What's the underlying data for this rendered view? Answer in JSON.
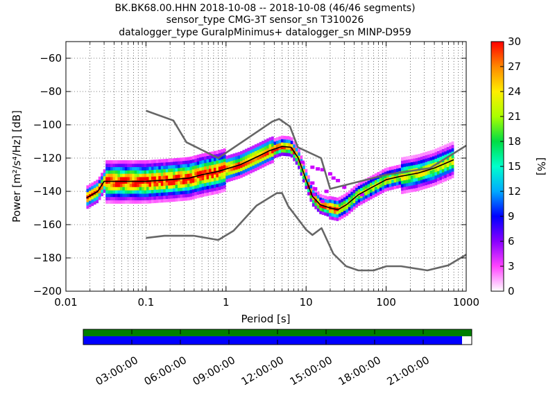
{
  "header": {
    "title_lines": [
      "BK.BK68.00.HHN   2018-10-08 -- 2018-10-08  (46/46 segments)",
      "sensor_type CMG-3T sensor_sn T310026",
      "datalogger_type GuralpMinimus+ datalogger_sn MINP-D959"
    ]
  },
  "chart_data": {
    "type": "heatmap",
    "xlabel": "Period [s]",
    "ylabel": "Power [m²/s⁴/Hz] [dB]",
    "x_scale": "log",
    "xlim": [
      0.01,
      1000
    ],
    "ylim": [
      -200,
      -50
    ],
    "x_ticks": [
      0.01,
      0.1,
      1,
      10,
      100,
      1000
    ],
    "x_tick_labels": [
      "0.01",
      "0.1",
      "1",
      "10",
      "100",
      "1000"
    ],
    "y_ticks": [
      -200,
      -180,
      -160,
      -140,
      -120,
      -100,
      -80,
      -60
    ],
    "y_tick_labels": [
      "−200",
      "−180",
      "−160",
      "−140",
      "−120",
      "−100",
      "−80",
      "−60"
    ],
    "grid": "dotted",
    "colorbar": {
      "label": "[%]",
      "range": [
        0,
        30
      ],
      "ticks": [
        0,
        3,
        6,
        9,
        12,
        15,
        18,
        21,
        24,
        27,
        30
      ],
      "tick_labels": [
        "0",
        "3",
        "6",
        "9",
        "12",
        "15",
        "18",
        "21",
        "24",
        "27",
        "30"
      ],
      "colors": [
        "#ffffff",
        "#ff44ff",
        "#8800ff",
        "#0000ff",
        "#00aaff",
        "#00ffcc",
        "#00dd44",
        "#aaff00",
        "#ffee00",
        "#ff8800",
        "#ff0000"
      ]
    },
    "noise_models": {
      "color": "#666666",
      "NHNM": [
        [
          0.1,
          -91.5
        ],
        [
          0.22,
          -97.4
        ],
        [
          0.32,
          -110.5
        ],
        [
          0.8,
          -120
        ],
        [
          3.8,
          -98
        ],
        [
          4.6,
          -96.5
        ],
        [
          6.3,
          -101
        ],
        [
          7.9,
          -113.5
        ],
        [
          15.4,
          -120
        ],
        [
          20,
          -138.5
        ],
        [
          100,
          -130
        ],
        [
          354,
          -126
        ],
        [
          1000,
          -112.5
        ]
      ],
      "NLNM": [
        [
          0.1,
          -168
        ],
        [
          0.17,
          -166.7
        ],
        [
          0.4,
          -166.7
        ],
        [
          0.8,
          -169.2
        ],
        [
          1.24,
          -163.7
        ],
        [
          2.4,
          -148.6
        ],
        [
          4.3,
          -141.1
        ],
        [
          5.0,
          -141
        ],
        [
          6.0,
          -149
        ],
        [
          10,
          -163
        ],
        [
          12,
          -166.2
        ],
        [
          15.6,
          -162.1
        ],
        [
          21.9,
          -177.5
        ],
        [
          31.6,
          -185
        ],
        [
          45,
          -187.5
        ],
        [
          70,
          -187.5
        ],
        [
          101,
          -185
        ],
        [
          154,
          -185
        ],
        [
          328,
          -187.5
        ],
        [
          600,
          -184.4
        ],
        [
          1000,
          -178
        ]
      ]
    },
    "psd_median": {
      "color": "#000000",
      "points": [
        [
          0.018,
          -144
        ],
        [
          0.025,
          -140
        ],
        [
          0.03,
          -134
        ],
        [
          0.05,
          -134
        ],
        [
          0.1,
          -134
        ],
        [
          0.2,
          -133
        ],
        [
          0.35,
          -132
        ],
        [
          0.5,
          -130
        ],
        [
          0.8,
          -128
        ],
        [
          1.5,
          -124
        ],
        [
          2.5,
          -119
        ],
        [
          3.5,
          -115.5
        ],
        [
          5.0,
          -113
        ],
        [
          6.5,
          -113.5
        ],
        [
          8,
          -120
        ],
        [
          10,
          -133
        ],
        [
          12,
          -143
        ],
        [
          15,
          -148
        ],
        [
          20,
          -150
        ],
        [
          25,
          -151
        ],
        [
          32,
          -148
        ],
        [
          45,
          -142
        ],
        [
          70,
          -137
        ],
        [
          100,
          -133
        ],
        [
          150,
          -131
        ],
        [
          250,
          -129
        ],
        [
          400,
          -126
        ],
        [
          700,
          -121
        ]
      ]
    },
    "psd_scatter": {
      "color": "#cc00ff",
      "points": [
        [
          9,
          -122.5
        ],
        [
          12,
          -125.5
        ],
        [
          14,
          -126.5
        ],
        [
          16,
          -127
        ],
        [
          20,
          -129.5
        ],
        [
          22,
          -132
        ],
        [
          12,
          -135
        ],
        [
          13,
          -138.5
        ],
        [
          12.5,
          -142
        ],
        [
          16,
          -146
        ],
        [
          18,
          -140
        ],
        [
          25,
          -133.5
        ],
        [
          30,
          -137.5
        ],
        [
          50,
          -142
        ]
      ]
    }
  },
  "timeline": {
    "tick_labels": [
      "03:00:00",
      "06:00:00",
      "09:00:00",
      "12:00:00",
      "15:00:00",
      "18:00:00",
      "21:00:00"
    ],
    "data_fraction": 0.975,
    "top_bar_color": "#008000",
    "bottom_bar_color": "#0000ff"
  }
}
